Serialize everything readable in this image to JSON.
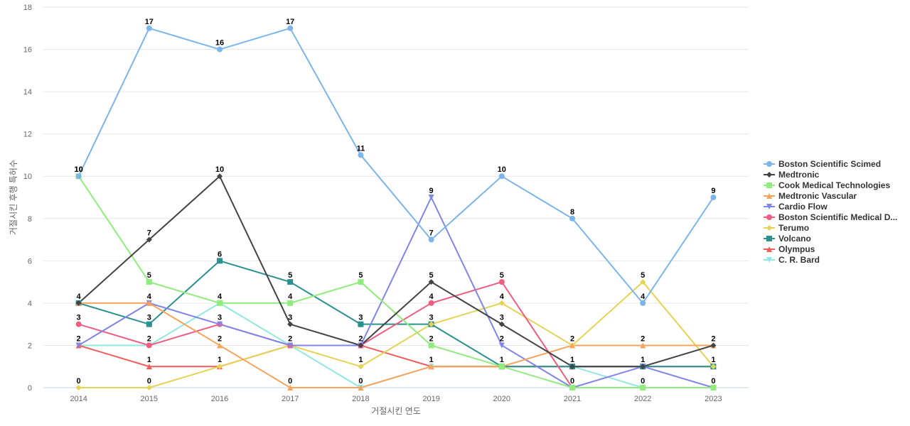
{
  "chart_data": {
    "type": "line",
    "title": "",
    "xlabel": "거절시킨 연도",
    "ylabel": "거절시킨 후행 특허수",
    "x": [
      "2014",
      "2015",
      "2016",
      "2017",
      "2018",
      "2019",
      "2020",
      "2021",
      "2022",
      "2023"
    ],
    "ylim": [
      0,
      18
    ],
    "yticks": [
      0,
      2,
      4,
      6,
      8,
      10,
      12,
      14,
      16,
      18
    ],
    "grid": true,
    "legend_position": "right",
    "series": [
      {
        "name": "Boston Scientific Scimed",
        "color": "#7cb5ec",
        "marker": "circle",
        "values": [
          10,
          17,
          16,
          17,
          11,
          7,
          10,
          8,
          4,
          9
        ]
      },
      {
        "name": "Medtronic",
        "color": "#434348",
        "marker": "diamond",
        "values": [
          4,
          7,
          10,
          3,
          2,
          5,
          3,
          1,
          1,
          2
        ]
      },
      {
        "name": "Cook Medical Technologies",
        "color": "#90ed7d",
        "marker": "square",
        "values": [
          10,
          5,
          4,
          4,
          5,
          2,
          1,
          0,
          0,
          0
        ]
      },
      {
        "name": "Medtronic Vascular",
        "color": "#f7a35c",
        "marker": "triangle",
        "values": [
          4,
          4,
          2,
          0,
          0,
          1,
          1,
          2,
          2,
          2
        ]
      },
      {
        "name": "Cardio Flow",
        "color": "#8085e9",
        "marker": "triangle-down",
        "values": [
          2,
          4,
          3,
          2,
          2,
          9,
          2,
          0,
          1,
          0
        ]
      },
      {
        "name": "Boston Scientific Medical D...",
        "color": "#f15c80",
        "marker": "circle",
        "values": [
          3,
          2,
          3,
          2,
          2,
          4,
          5,
          0,
          0,
          0
        ]
      },
      {
        "name": "Terumo",
        "color": "#e4d354",
        "marker": "diamond",
        "values": [
          0,
          0,
          1,
          2,
          1,
          3,
          4,
          2,
          5,
          1
        ]
      },
      {
        "name": "Volcano",
        "color": "#2b908f",
        "marker": "square",
        "values": [
          4,
          3,
          6,
          5,
          3,
          3,
          1,
          1,
          1,
          1
        ]
      },
      {
        "name": "Olympus",
        "color": "#f45b5b",
        "marker": "triangle",
        "values": [
          2,
          1,
          1,
          2,
          2,
          1,
          1,
          1,
          1,
          1
        ]
      },
      {
        "name": "C. R. Bard",
        "color": "#91e8e1",
        "marker": "triangle-down",
        "values": [
          2,
          2,
          4,
          2,
          0,
          1,
          1,
          1,
          0,
          0
        ]
      }
    ],
    "annotations": [
      {
        "x": "2014",
        "text": "10",
        "value": 10
      },
      {
        "x": "2015",
        "text": "17",
        "value": 17
      },
      {
        "x": "2016",
        "text": "16",
        "value": 16
      },
      {
        "x": "2017",
        "text": "17",
        "value": 17
      },
      {
        "x": "2018",
        "text": "11",
        "value": 11
      },
      {
        "x": "2019",
        "text": "7",
        "value": 7
      },
      {
        "x": "2020",
        "text": "10",
        "value": 10
      },
      {
        "x": "2021",
        "text": "8",
        "value": 8
      },
      {
        "x": "2022",
        "text": "4",
        "value": 4
      },
      {
        "x": "2023",
        "text": "9",
        "value": 9
      },
      {
        "x": "2014",
        "text": "10",
        "value": 10
      },
      {
        "x": "2016",
        "text": "10",
        "value": 10
      },
      {
        "x": "2015",
        "text": "7",
        "value": 7
      },
      {
        "x": "2016",
        "text": "6",
        "value": 6
      },
      {
        "x": "2015",
        "text": "5",
        "value": 5
      },
      {
        "x": "2017",
        "text": "5",
        "value": 5
      },
      {
        "x": "2018",
        "text": "5",
        "value": 5
      },
      {
        "x": "2019",
        "text": "5",
        "value": 5
      },
      {
        "x": "2020",
        "text": "5",
        "value": 5
      },
      {
        "x": "2022",
        "text": "5",
        "value": 5
      },
      {
        "x": "2019",
        "text": "9",
        "value": 9
      },
      {
        "x": "2014",
        "text": "4",
        "value": 4
      },
      {
        "x": "2015",
        "text": "4",
        "value": 4
      },
      {
        "x": "2016",
        "text": "4",
        "value": 4
      },
      {
        "x": "2017",
        "text": "4",
        "value": 4
      },
      {
        "x": "2019",
        "text": "4",
        "value": 4
      },
      {
        "x": "2020",
        "text": "4",
        "value": 4
      },
      {
        "x": "2014",
        "text": "3",
        "value": 3
      },
      {
        "x": "2015",
        "text": "3",
        "value": 3
      },
      {
        "x": "2016",
        "text": "3",
        "value": 3
      },
      {
        "x": "2017",
        "text": "3",
        "value": 3
      },
      {
        "x": "2018",
        "text": "3",
        "value": 3
      },
      {
        "x": "2019",
        "text": "3",
        "value": 3
      },
      {
        "x": "2020",
        "text": "3",
        "value": 3
      },
      {
        "x": "2014",
        "text": "2",
        "value": 2
      },
      {
        "x": "2015",
        "text": "2",
        "value": 2
      },
      {
        "x": "2016",
        "text": "2",
        "value": 2
      },
      {
        "x": "2017",
        "text": "2",
        "value": 2
      },
      {
        "x": "2018",
        "text": "2",
        "value": 2
      },
      {
        "x": "2019",
        "text": "2",
        "value": 2
      },
      {
        "x": "2020",
        "text": "2",
        "value": 2
      },
      {
        "x": "2021",
        "text": "2",
        "value": 2
      },
      {
        "x": "2022",
        "text": "2",
        "value": 2
      },
      {
        "x": "2023",
        "text": "2",
        "value": 2
      },
      {
        "x": "2015",
        "text": "1",
        "value": 1
      },
      {
        "x": "2016",
        "text": "1",
        "value": 1
      },
      {
        "x": "2018",
        "text": "1",
        "value": 1
      },
      {
        "x": "2019",
        "text": "1",
        "value": 1
      },
      {
        "x": "2020",
        "text": "1",
        "value": 1
      },
      {
        "x": "2021",
        "text": "1",
        "value": 1
      },
      {
        "x": "2022",
        "text": "1",
        "value": 1
      },
      {
        "x": "2023",
        "text": "1",
        "value": 1
      },
      {
        "x": "2014",
        "text": "0",
        "value": 0
      },
      {
        "x": "2015",
        "text": "0",
        "value": 0
      },
      {
        "x": "2017",
        "text": "0",
        "value": 0
      },
      {
        "x": "2018",
        "text": "0",
        "value": 0
      },
      {
        "x": "2021",
        "text": "0",
        "value": 0
      },
      {
        "x": "2022",
        "text": "0",
        "value": 0
      },
      {
        "x": "2023",
        "text": "0",
        "value": 0
      }
    ]
  }
}
